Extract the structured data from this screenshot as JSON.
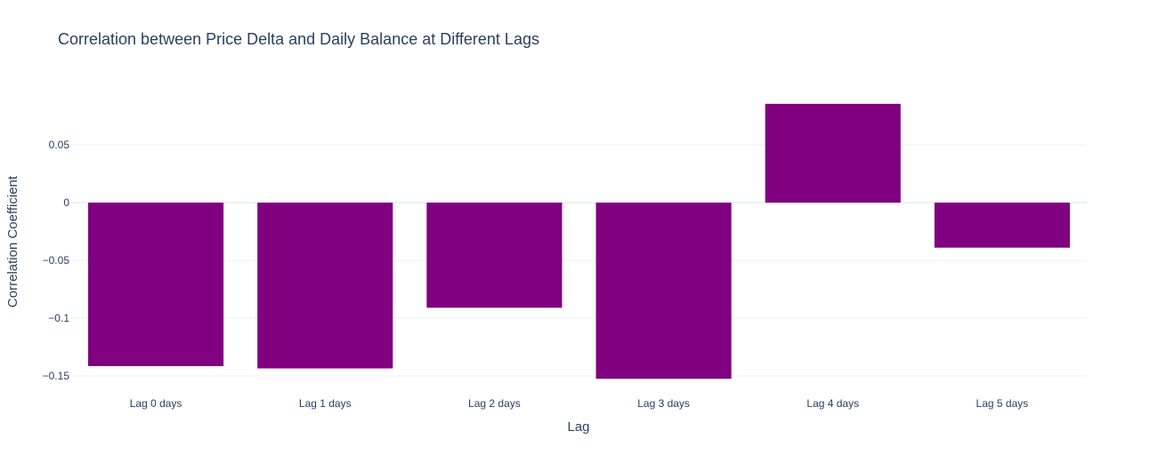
{
  "chart_data": {
    "type": "bar",
    "title": "Correlation between Price Delta and Daily Balance at Different Lags",
    "xlabel": "Lag",
    "ylabel": "Correlation Coefficient",
    "categories": [
      "Lag 0 days",
      "Lag 1 days",
      "Lag 2 days",
      "Lag 3 days",
      "Lag 4 days",
      "Lag 5 days"
    ],
    "values": [
      -0.1415,
      -0.1435,
      -0.091,
      -0.1525,
      0.0855,
      -0.039
    ],
    "ylim": [
      -0.1555,
      0.1
    ],
    "yticks": [
      0.05,
      0,
      -0.05,
      -0.1,
      -0.15
    ],
    "ytick_labels": [
      "0.05",
      "0",
      "−0.05",
      "−0.1",
      "−0.15"
    ],
    "bar_color": "#800080",
    "grid": true
  }
}
